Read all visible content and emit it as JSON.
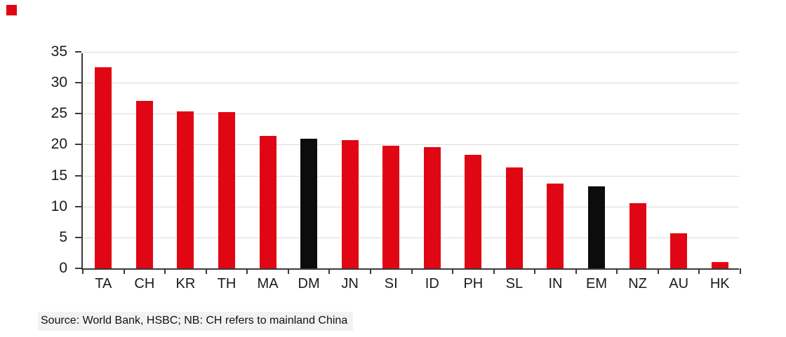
{
  "brand": {
    "square_color": "#e10613"
  },
  "chart_data": {
    "type": "bar",
    "categories": [
      "TA",
      "CH",
      "KR",
      "TH",
      "MA",
      "DM",
      "JN",
      "SI",
      "ID",
      "PH",
      "SL",
      "IN",
      "EM",
      "NZ",
      "AU",
      "HK"
    ],
    "values": [
      32.5,
      27.1,
      25.4,
      25.3,
      21.4,
      20.9,
      20.7,
      19.8,
      19.6,
      18.4,
      16.3,
      13.7,
      13.3,
      10.5,
      5.7,
      1.0
    ],
    "bar_colors": [
      "#e10613",
      "#e10613",
      "#e10613",
      "#e10613",
      "#e10613",
      "#0c0c0c",
      "#e10613",
      "#e10613",
      "#e10613",
      "#e10613",
      "#e10613",
      "#e10613",
      "#0c0c0c",
      "#e10613",
      "#e10613",
      "#e10613"
    ],
    "highlighted_categories": [
      "DM",
      "EM"
    ],
    "title": "",
    "xlabel": "",
    "ylabel": "",
    "yticks": [
      0,
      5,
      10,
      15,
      20,
      25,
      30,
      35
    ],
    "ylim": [
      0,
      35
    ],
    "grid": true,
    "legend": "none"
  },
  "colors": {
    "bar_red": "#e10613",
    "bar_black": "#0c0c0c",
    "axis": "#3a3a3a",
    "gridline": "#dcdcdc",
    "text": "#1a1a1a",
    "source_bg": "#f2f2f2"
  },
  "source_note": "Source: World Bank, HSBC; NB: CH refers to mainland China"
}
